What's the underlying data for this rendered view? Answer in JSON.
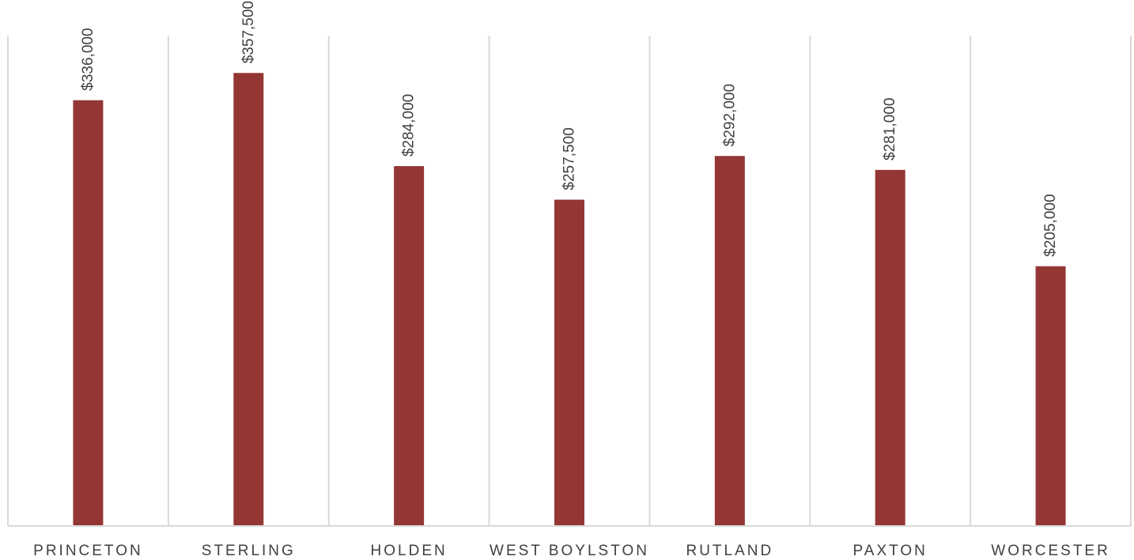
{
  "chart_data": {
    "type": "bar",
    "categories": [
      "PRINCETON",
      "STERLING",
      "HOLDEN",
      "WEST BOYLSTON",
      "RUTLAND",
      "PAXTON",
      "WORCESTER"
    ],
    "values": [
      336000,
      357500,
      284000,
      257500,
      292000,
      281000,
      205000
    ],
    "value_labels": [
      "$336,000",
      "$357,500",
      "$284,000",
      "$257,500",
      "$292,000",
      "$281,000",
      "$205,000"
    ],
    "title": "",
    "xlabel": "",
    "ylabel": "",
    "ylim": [
      0,
      387000
    ],
    "grid": "vertical category dividers",
    "legend": "none",
    "bar_color": "#943634",
    "divider_color": "#d9d9d9",
    "axis_color": "#d9d9d9",
    "text_color": "#404040"
  }
}
